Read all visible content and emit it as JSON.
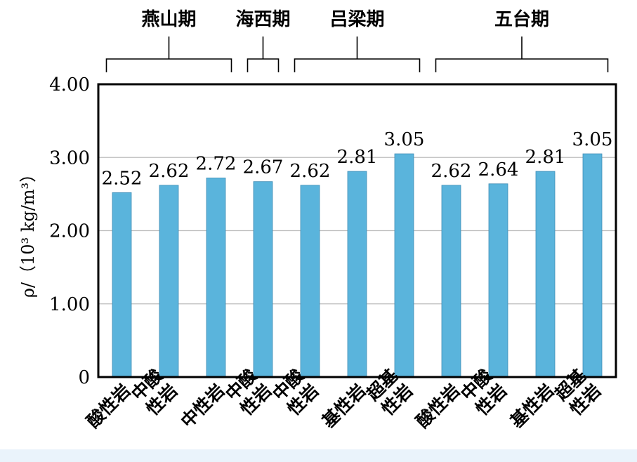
{
  "chart_data": {
    "type": "bar",
    "title": "",
    "ylabel": "ρ/（10³ kg/m³）",
    "ylim": [
      0,
      4
    ],
    "yticks": [
      "0",
      "1.00",
      "2.00",
      "3.00",
      "4.00"
    ],
    "grid": true,
    "bar_color": "#5ab4dc",
    "categories": [
      [
        "酸性岩"
      ],
      [
        "中酸",
        "性岩"
      ],
      [
        "中性岩"
      ],
      [
        "中酸",
        "性岩"
      ],
      [
        "中酸",
        "性岩"
      ],
      [
        "基性岩"
      ],
      [
        "超基",
        "性岩"
      ],
      [
        "酸性岩"
      ],
      [
        "中酸",
        "性岩"
      ],
      [
        "基性岩"
      ],
      [
        "超基",
        "性岩"
      ]
    ],
    "values": [
      2.52,
      2.62,
      2.72,
      2.67,
      2.62,
      2.81,
      3.05,
      2.62,
      2.64,
      2.81,
      3.05
    ],
    "value_labels": [
      "2.52",
      "2.62",
      "2.72",
      "2.67",
      "2.62",
      "2.81",
      "3.05",
      "2.62",
      "2.64",
      "2.81",
      "3.05"
    ],
    "groups": [
      {
        "name": "燕山期",
        "from": 0,
        "to": 2
      },
      {
        "name": "海西期",
        "from": 3,
        "to": 3
      },
      {
        "name": "吕梁期",
        "from": 4,
        "to": 6
      },
      {
        "name": "五台期",
        "from": 7,
        "to": 10
      }
    ]
  }
}
